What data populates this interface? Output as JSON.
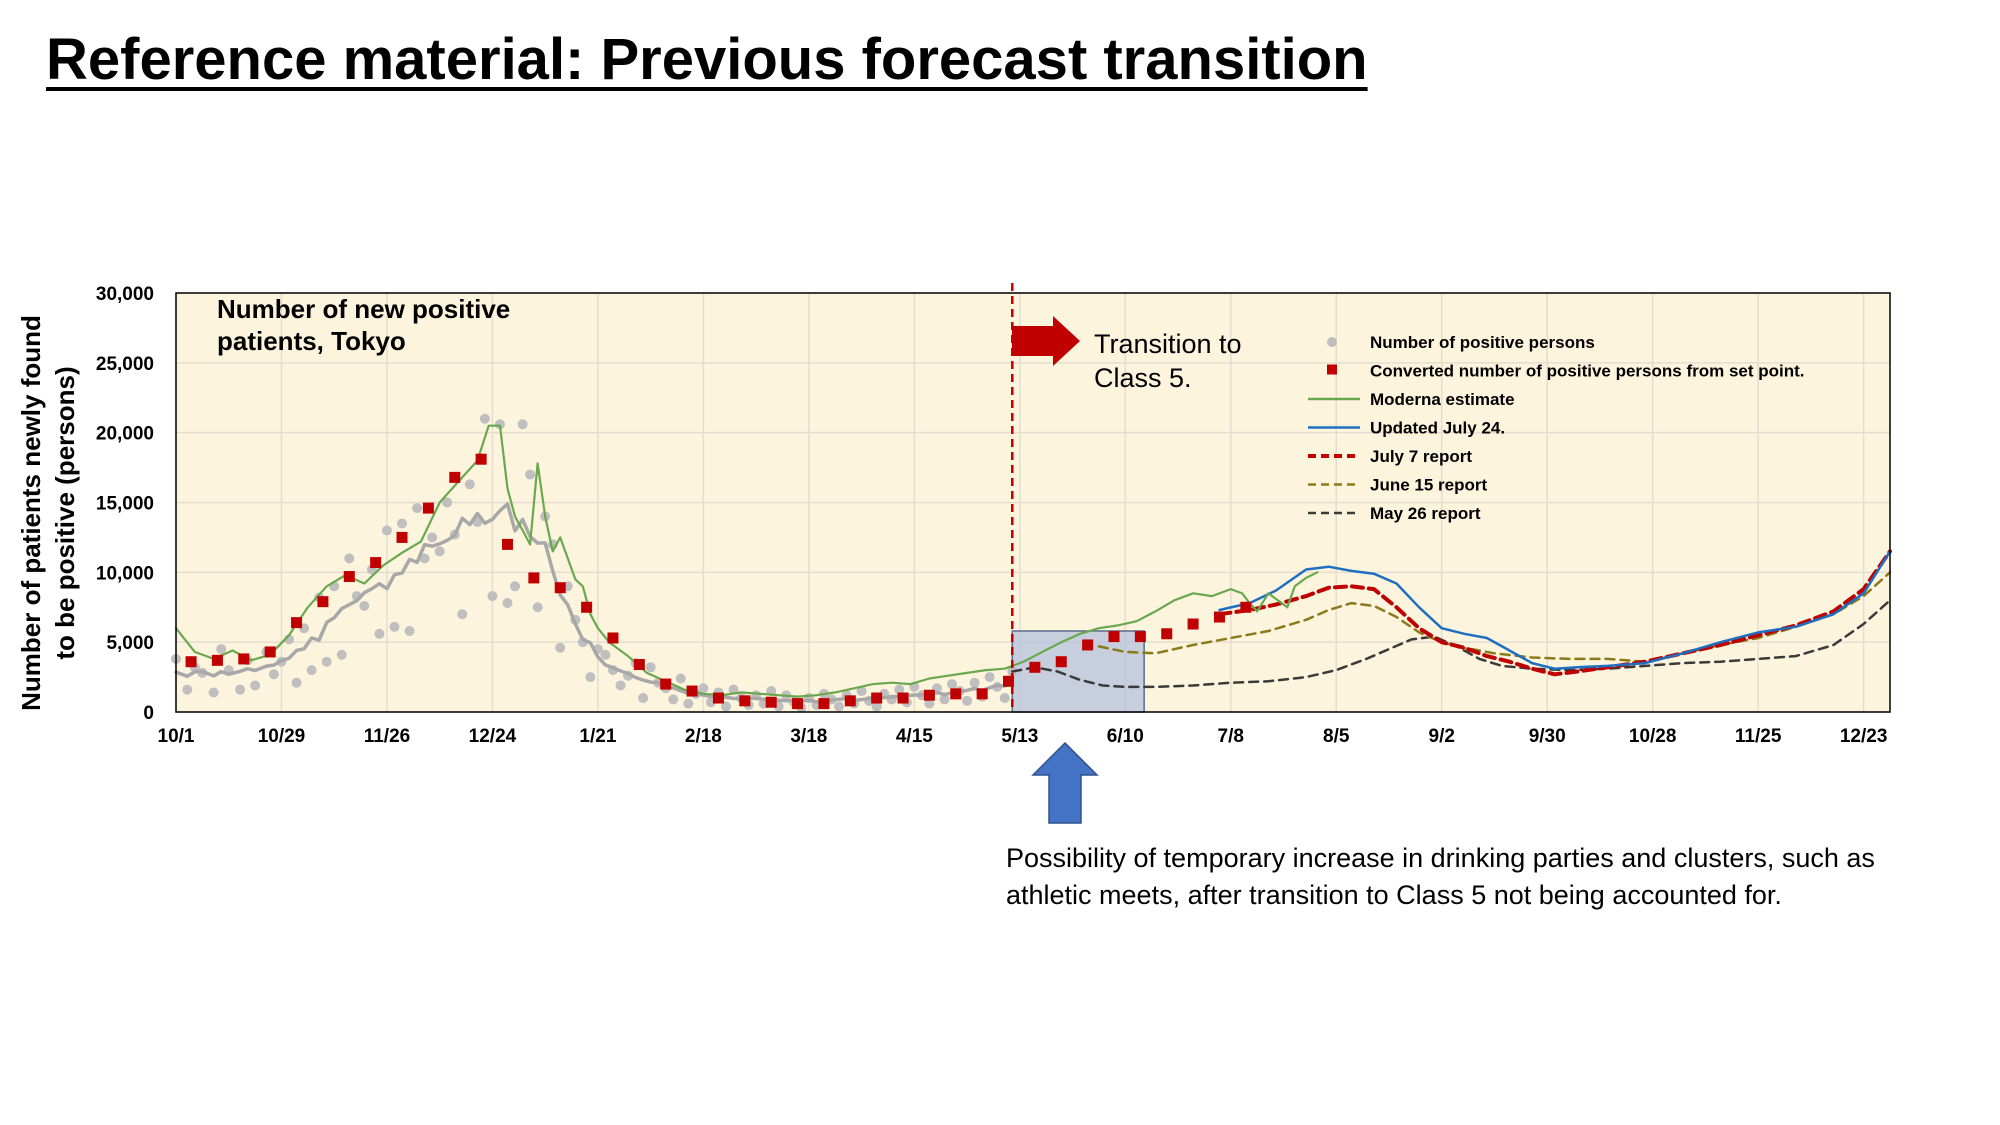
{
  "page_title": "Reference material: Previous forecast transition",
  "note": "Possibility of temporary increase in drinking parties and clusters, such as athletic meets, after transition to Class 5 not being accounted for.",
  "annotation": {
    "transition_line1": "Transition to",
    "transition_line2": "Class 5."
  },
  "colors": {
    "plot_bg": "#fdf4de",
    "grid": "#e4ddd0",
    "observed": "#bfbfbf",
    "converted": "#c00000",
    "moderna": "#6aa84f",
    "updated_jul24": "#1f6fc0",
    "jul7": "#c00000",
    "jun15": "#8b7a1a",
    "may26": "#3a3a3a",
    "arrow_red": "#c00000",
    "arrow_blue": "#4472c4",
    "highlight": "#b4c2dc"
  },
  "chart_data": {
    "type": "line",
    "title": "Number of new positive patients, Tokyo",
    "ylabel": "Number of patients newly found to be positive (persons)",
    "ylim": [
      0,
      30000
    ],
    "y_ticks": [
      "30,000",
      "25,000",
      "20,000",
      "15,000",
      "10,000",
      "5,000",
      "0"
    ],
    "y_tick_values": [
      30000,
      25000,
      20000,
      15000,
      10000,
      5000,
      0
    ],
    "x_range_days": [
      0,
      455
    ],
    "x_ticks": [
      {
        "label": "10/1",
        "day": 0
      },
      {
        "label": "10/29",
        "day": 28
      },
      {
        "label": "11/26",
        "day": 56
      },
      {
        "label": "12/24",
        "day": 84
      },
      {
        "label": "1/21",
        "day": 112
      },
      {
        "label": "2/18",
        "day": 140
      },
      {
        "label": "3/18",
        "day": 168
      },
      {
        "label": "4/15",
        "day": 196
      },
      {
        "label": "5/13",
        "day": 224
      },
      {
        "label": "6/10",
        "day": 252
      },
      {
        "label": "7/8",
        "day": 280
      },
      {
        "label": "8/5",
        "day": 308
      },
      {
        "label": "9/2",
        "day": 336
      },
      {
        "label": "9/30",
        "day": 364
      },
      {
        "label": "10/28",
        "day": 392
      },
      {
        "label": "11/25",
        "day": 420
      },
      {
        "label": "12/23",
        "day": 448
      }
    ],
    "transition_day": 222,
    "highlight_days": [
      222,
      257
    ],
    "legend_position": "top-right",
    "grid": true,
    "series": [
      {
        "name": "Number of positive persons",
        "style": "points",
        "x": [
          0,
          3,
          5,
          7,
          10,
          12,
          14,
          17,
          19,
          21,
          24,
          26,
          28,
          30,
          32,
          34,
          36,
          38,
          40,
          42,
          44,
          46,
          48,
          50,
          52,
          54,
          56,
          58,
          60,
          62,
          64,
          66,
          68,
          70,
          72,
          74,
          76,
          78,
          80,
          82,
          84,
          86,
          88,
          90,
          92,
          94,
          96,
          98,
          100,
          102,
          104,
          106,
          108,
          110,
          112,
          114,
          116,
          118,
          120,
          122,
          124,
          126,
          128,
          130,
          132,
          134,
          136,
          138,
          140,
          142,
          144,
          146,
          148,
          150,
          152,
          154,
          156,
          158,
          160,
          162,
          164,
          166,
          168,
          170,
          172,
          174,
          176,
          178,
          180,
          182,
          184,
          186,
          188,
          190,
          192,
          194,
          196,
          198,
          200,
          202,
          204,
          206,
          208,
          210,
          212,
          214,
          216,
          218,
          220,
          222
        ],
        "y": [
          3800,
          1600,
          3200,
          2800,
          1400,
          4500,
          3000,
          1600,
          3700,
          1900,
          4300,
          2700,
          3600,
          5200,
          2100,
          6000,
          3000,
          8200,
          3600,
          9000,
          4100,
          11000,
          8300,
          7600,
          10200,
          5600,
          13000,
          6100,
          13500,
          5800,
          14600,
          11000,
          12500,
          11500,
          15000,
          12700,
          7000,
          16300,
          13600,
          21000,
          8300,
          20600,
          7800,
          9000,
          20600,
          17000,
          7500,
          14000,
          12000,
          4600,
          9000,
          6600,
          5000,
          2500,
          4500,
          4100,
          3000,
          1900,
          2600,
          3500,
          1000,
          3200,
          2100,
          1700,
          900,
          2400,
          600,
          1300,
          1700,
          700,
          1400,
          400,
          1600,
          1000,
          500,
          1200,
          600,
          1500,
          400,
          1200,
          700,
          300,
          1000,
          500,
          1300,
          900,
          400,
          1200,
          600,
          1500,
          800,
          400,
          1300,
          900,
          1600,
          700,
          1800,
          1200,
          600,
          1700,
          900,
          2000,
          1500,
          800,
          2100,
          1100,
          2500,
          1800,
          1000,
          2900
        ]
      },
      {
        "name": "Converted number of positive persons from set point.",
        "style": "squares",
        "x": [
          4,
          11,
          18,
          25,
          32,
          39,
          46,
          53,
          60,
          67,
          74,
          81,
          88,
          95,
          102,
          109,
          116,
          123,
          130,
          137,
          144,
          151,
          158,
          165,
          172,
          179,
          186,
          193,
          200,
          207,
          214,
          221,
          228,
          235,
          242,
          249,
          256,
          263,
          270,
          277,
          284
        ],
        "y": [
          3600,
          3700,
          3800,
          4300,
          6400,
          7900,
          9700,
          10700,
          12500,
          14600,
          16800,
          18100,
          12000,
          9600,
          8900,
          7500,
          5300,
          3400,
          2000,
          1500,
          1000,
          800,
          700,
          600,
          600,
          800,
          1000,
          1000,
          1200,
          1300,
          1300,
          2200,
          3200,
          3600,
          4800,
          5400,
          5400,
          5600,
          6300,
          6800,
          7500
        ]
      },
      {
        "name": "Moderna estimate",
        "style": "line",
        "x": [
          0,
          5,
          10,
          15,
          20,
          25,
          30,
          35,
          40,
          45,
          50,
          55,
          60,
          65,
          70,
          75,
          80,
          83,
          86,
          88,
          90,
          92,
          94,
          96,
          98,
          100,
          102,
          104,
          106,
          108,
          110,
          112,
          115,
          120,
          125,
          130,
          135,
          140,
          145,
          150,
          155,
          160,
          165,
          170,
          175,
          180,
          185,
          190,
          195,
          200,
          205,
          210,
          215,
          220,
          225,
          230,
          235,
          240,
          245,
          250,
          255,
          260,
          265,
          270,
          275,
          280,
          283,
          285,
          287,
          290,
          295,
          297,
          300,
          303
        ],
        "y": [
          6000,
          4300,
          3800,
          4400,
          3700,
          4100,
          5500,
          7500,
          9000,
          9800,
          9200,
          10500,
          11400,
          12200,
          15000,
          16500,
          18000,
          20500,
          20500,
          16000,
          14000,
          13000,
          12000,
          17800,
          14000,
          11500,
          12500,
          11000,
          9500,
          9000,
          7000,
          6000,
          5000,
          4000,
          2800,
          2200,
          1600,
          1300,
          1200,
          1400,
          1300,
          1200,
          1100,
          1200,
          1400,
          1700,
          2000,
          2100,
          2000,
          2400,
          2600,
          2800,
          3000,
          3100,
          3600,
          4300,
          5000,
          5600,
          6000,
          6200,
          6500,
          7200,
          8000,
          8500,
          8300,
          8800,
          8500,
          7800,
          7200,
          8500,
          7500,
          9000,
          9600,
          10000
        ]
      },
      {
        "name": "Updated July 24.",
        "style": "line",
        "x": [
          277,
          285,
          292,
          300,
          306,
          312,
          318,
          324,
          330,
          336,
          342,
          348,
          354,
          360,
          366,
          372,
          380,
          390,
          400,
          410,
          420,
          430,
          440,
          448,
          455
        ],
        "y": [
          7300,
          7800,
          8700,
          10200,
          10400,
          10100,
          9900,
          9200,
          7500,
          6000,
          5600,
          5300,
          4400,
          3500,
          3100,
          3200,
          3300,
          3500,
          4200,
          5000,
          5700,
          6100,
          7000,
          8500,
          11500
        ]
      },
      {
        "name": "July 7 report",
        "style": "dashed",
        "x": [
          277,
          285,
          292,
          300,
          306,
          312,
          318,
          324,
          330,
          336,
          342,
          348,
          354,
          360,
          366,
          372,
          380,
          390,
          400,
          410,
          420,
          430,
          440,
          448,
          455
        ],
        "y": [
          7000,
          7300,
          7700,
          8300,
          8900,
          9000,
          8800,
          7500,
          6000,
          5000,
          4600,
          4000,
          3600,
          3100,
          2700,
          2900,
          3200,
          3600,
          4200,
          4800,
          5500,
          6200,
          7200,
          8800,
          11500
        ]
      },
      {
        "name": "June 15 report",
        "style": "dashed",
        "x": [
          245,
          252,
          260,
          270,
          280,
          290,
          300,
          306,
          312,
          318,
          324,
          330,
          336,
          342,
          350,
          360,
          370,
          380,
          390,
          400,
          410,
          420,
          430,
          440,
          448,
          455
        ],
        "y": [
          4700,
          4300,
          4200,
          4800,
          5300,
          5800,
          6600,
          7300,
          7800,
          7600,
          6800,
          5700,
          5000,
          4600,
          4200,
          3900,
          3800,
          3800,
          3600,
          4200,
          4800,
          5300,
          6100,
          7000,
          8300,
          10000
        ]
      },
      {
        "name": "May 26 report",
        "style": "dashed",
        "x": [
          222,
          228,
          234,
          240,
          246,
          252,
          260,
          270,
          280,
          290,
          300,
          308,
          316,
          322,
          328,
          334,
          340,
          346,
          352,
          360,
          370,
          380,
          390,
          400,
          410,
          420,
          430,
          440,
          448,
          455
        ],
        "y": [
          2900,
          3200,
          2900,
          2300,
          1900,
          1800,
          1800,
          1900,
          2100,
          2200,
          2500,
          3000,
          3800,
          4500,
          5200,
          5400,
          4700,
          3800,
          3300,
          3100,
          3000,
          3100,
          3300,
          3500,
          3600,
          3800,
          4000,
          4800,
          6300,
          8000
        ]
      }
    ]
  }
}
